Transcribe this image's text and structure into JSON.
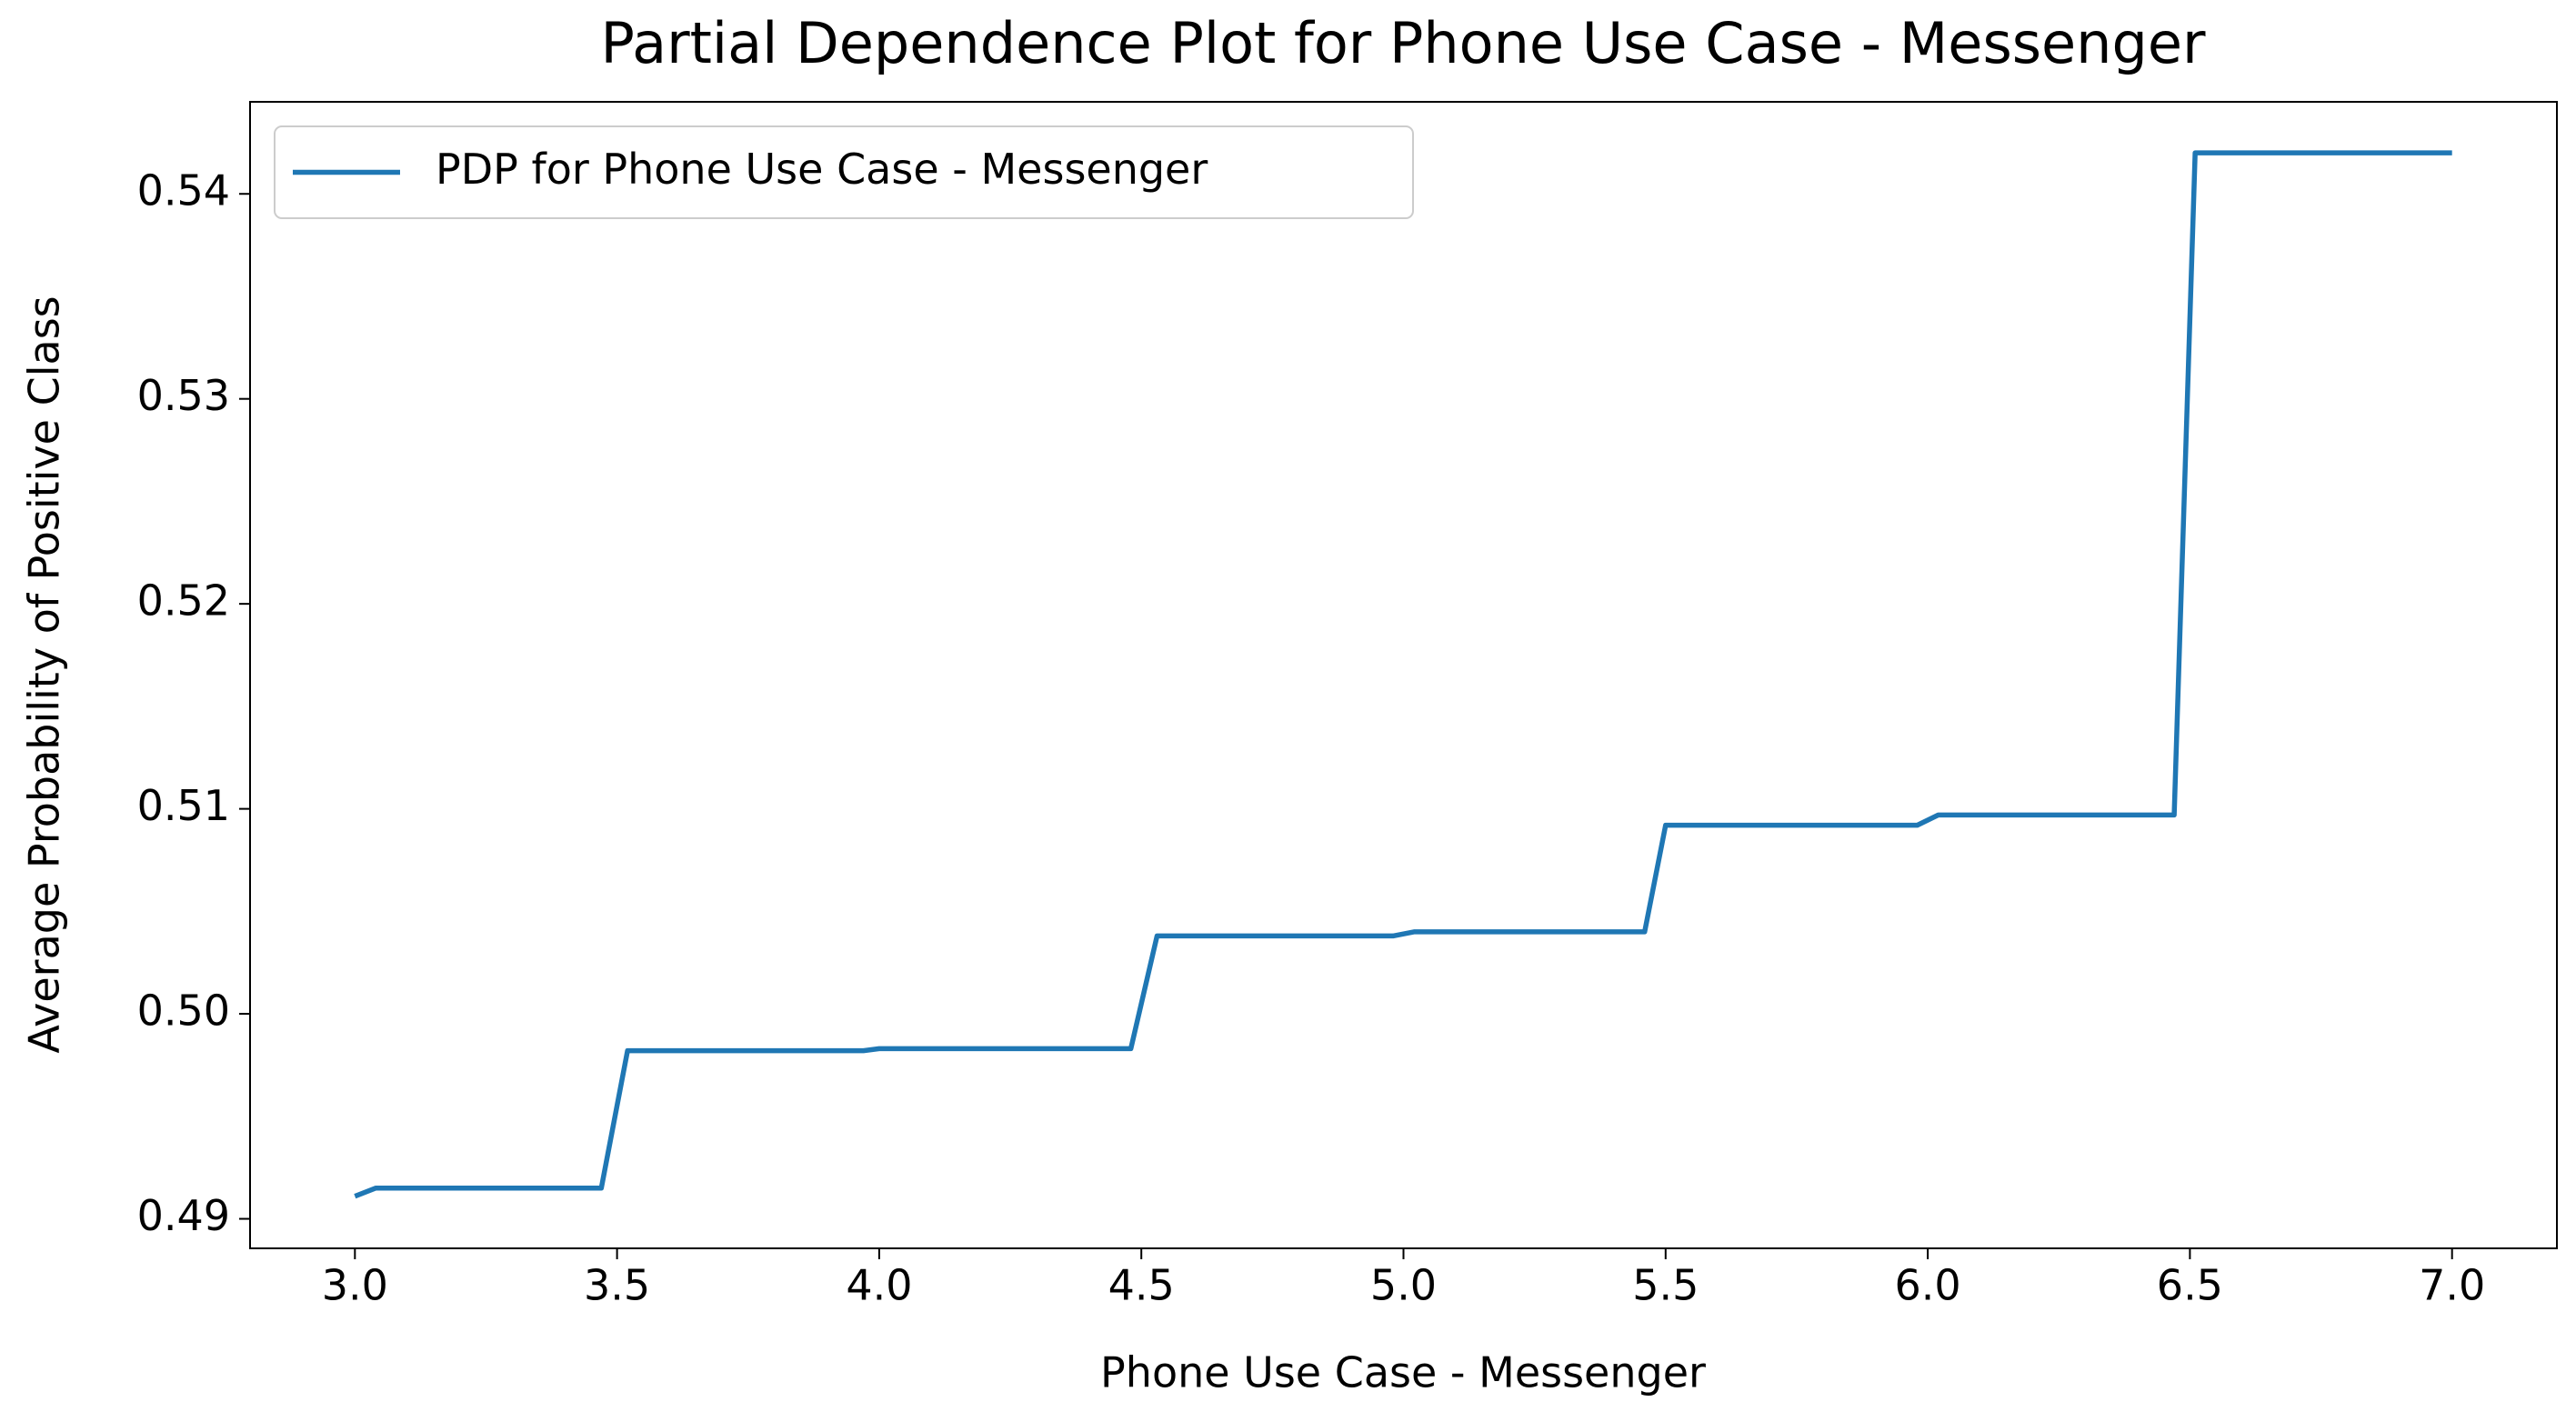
{
  "chart_data": {
    "type": "line",
    "title": "Partial Dependence Plot for Phone Use Case - Messenger",
    "x_label": "Phone Use Case - Messenger",
    "y_label": "Average Probability of Positive Class",
    "x": [
      3.0,
      3.04,
      3.47,
      3.52,
      3.97,
      4.0,
      4.48,
      4.53,
      4.98,
      5.02,
      5.46,
      5.5,
      5.98,
      6.02,
      6.47,
      6.51,
      7.0
    ],
    "series": [
      {
        "name": "PDP for Phone Use Case - Messenger",
        "color": "#1f77b4",
        "values": [
          0.4911,
          0.4915,
          0.4915,
          0.4982,
          0.4982,
          0.4983,
          0.4983,
          0.5038,
          0.5038,
          0.504,
          0.504,
          0.5092,
          0.5092,
          0.5097,
          0.5097,
          0.542,
          0.542
        ]
      }
    ],
    "xlim": [
      2.8,
      7.2
    ],
    "ylim": [
      0.48856,
      0.54449
    ],
    "xticks": [
      {
        "value": 3,
        "label": "3.0"
      },
      {
        "value": 3.5,
        "label": "3.5"
      },
      {
        "value": 4,
        "label": "4.0"
      },
      {
        "value": 4.5,
        "label": "4.5"
      },
      {
        "value": 5,
        "label": "5.0"
      },
      {
        "value": 5.5,
        "label": "5.5"
      },
      {
        "value": 6,
        "label": "6.0"
      },
      {
        "value": 6.5,
        "label": "6.5"
      },
      {
        "value": 7,
        "label": "7.0"
      }
    ],
    "yticks": [
      0.49,
      {
        "value": 0.5,
        "label": "0.50"
      },
      0.51,
      0.52,
      0.53,
      0.54
    ],
    "legend": "upper left",
    "grid": false
  }
}
